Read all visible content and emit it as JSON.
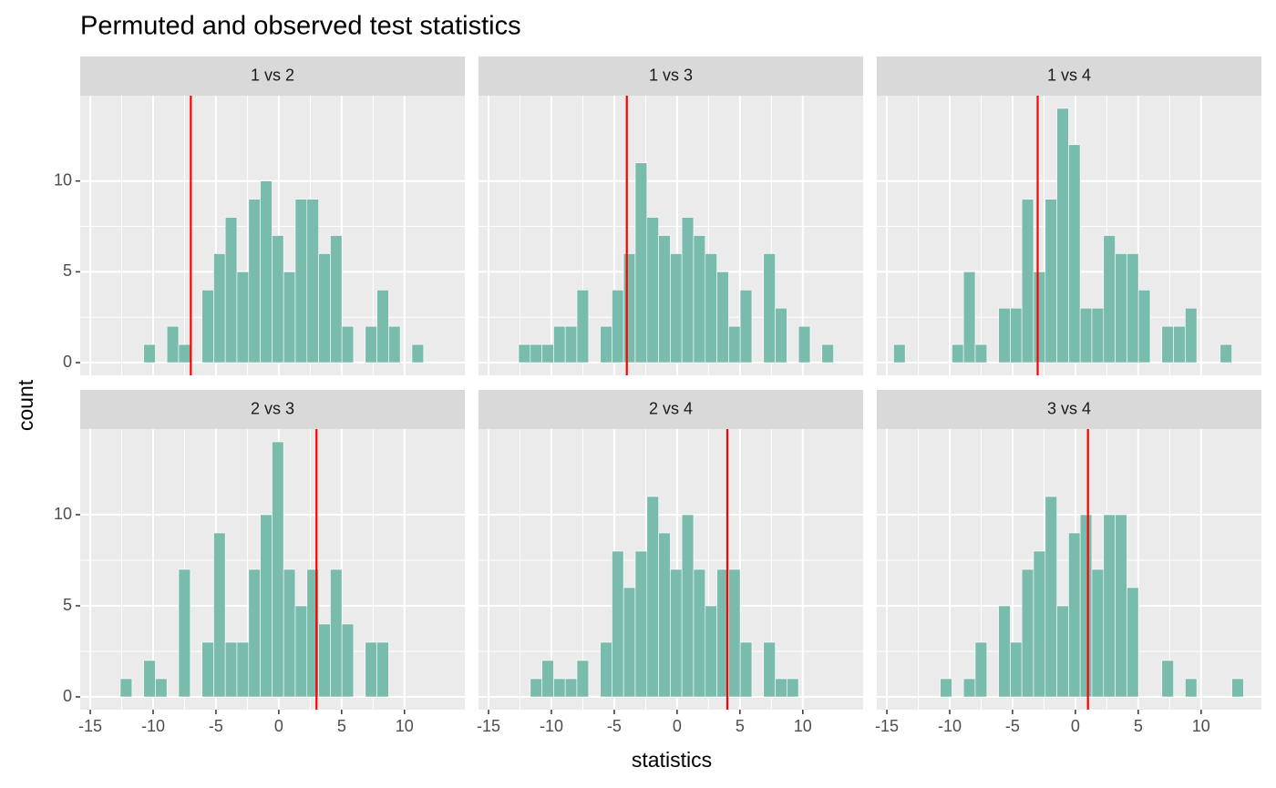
{
  "chart_data": {
    "type": "histogram",
    "title": "Permuted and observed test statistics",
    "x_label": "statistics",
    "y_label": "count",
    "color": "#79bbad",
    "line_color": "#ff0000",
    "grid": true,
    "xlim": [
      -15.8,
      14.8
    ],
    "ylim": [
      -0.7,
      14.7
    ],
    "xticks": [
      -15,
      -10,
      -5,
      0,
      5,
      10
    ],
    "yticks": [
      0,
      5,
      10
    ],
    "bins": [
      -14.46,
      -13.54,
      -12.61,
      -11.68,
      -10.75,
      -9.82,
      -8.9,
      -7.97,
      -7.04,
      -6.11,
      -5.18,
      -4.26,
      -3.33,
      -2.4,
      -1.47,
      -0.54,
      0.38,
      1.31,
      2.24,
      3.17,
      4.1,
      5.02,
      5.95,
      6.88,
      7.81,
      8.74,
      9.66,
      10.59,
      11.52,
      12.45,
      13.38
    ],
    "panels": [
      {
        "name": "1 vs 2",
        "observed": -7,
        "counts": [
          0,
          0,
          0,
          0,
          1,
          0,
          2,
          1,
          0,
          4,
          6,
          8,
          5,
          9,
          10,
          7,
          5,
          9,
          9,
          6,
          7,
          2,
          0,
          2,
          4,
          2,
          0,
          1,
          0,
          0
        ]
      },
      {
        "name": "1 vs 3",
        "observed": -4,
        "counts": [
          0,
          0,
          1,
          1,
          1,
          2,
          2,
          4,
          0,
          2,
          4,
          6,
          11,
          8,
          7,
          6,
          8,
          7,
          6,
          5,
          2,
          4,
          0,
          6,
          3,
          0,
          2,
          0,
          1,
          0
        ]
      },
      {
        "name": "1 vs 4",
        "observed": -3,
        "counts": [
          1,
          0,
          0,
          0,
          0,
          1,
          5,
          1,
          0,
          3,
          3,
          9,
          5,
          9,
          14,
          12,
          3,
          3,
          7,
          6,
          6,
          4,
          0,
          2,
          2,
          3,
          0,
          0,
          1,
          0
        ]
      },
      {
        "name": "2 vs 3",
        "observed": 3,
        "counts": [
          0,
          0,
          1,
          0,
          2,
          1,
          0,
          7,
          0,
          3,
          9,
          3,
          3,
          7,
          10,
          14,
          7,
          5,
          7,
          4,
          7,
          4,
          0,
          3,
          3,
          0,
          0,
          0,
          0,
          0
        ]
      },
      {
        "name": "2 vs 4",
        "observed": 4,
        "counts": [
          0,
          0,
          0,
          1,
          2,
          1,
          1,
          2,
          0,
          3,
          8,
          6,
          8,
          11,
          9,
          7,
          10,
          7,
          5,
          7,
          7,
          3,
          0,
          3,
          1,
          1,
          0,
          0,
          0,
          0
        ]
      },
      {
        "name": "3 vs 4",
        "observed": 1,
        "counts": [
          0,
          0,
          0,
          0,
          1,
          0,
          1,
          3,
          0,
          5,
          3,
          7,
          8,
          11,
          5,
          9,
          10,
          7,
          10,
          10,
          6,
          0,
          0,
          2,
          0,
          1,
          0,
          0,
          0,
          1
        ]
      }
    ]
  }
}
